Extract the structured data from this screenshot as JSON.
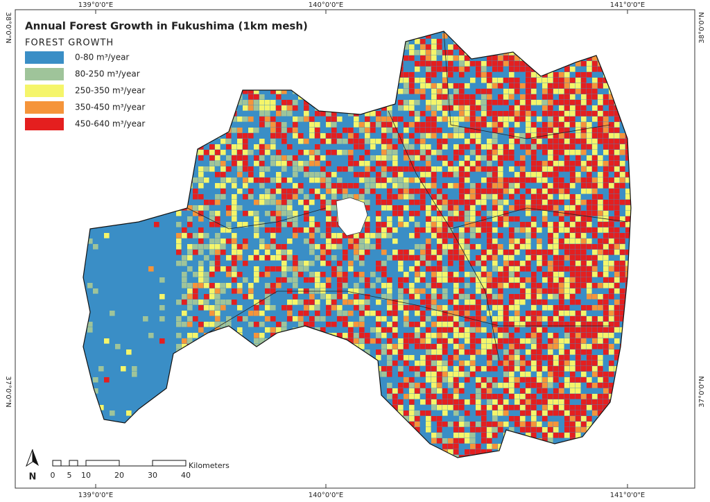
{
  "title": "Annual Forest Growth in Fukushima (1km mesh)",
  "legend": {
    "title": "FOREST GROWTH",
    "items": [
      {
        "label": "0-80 m³/year",
        "color": "#3a8ec6"
      },
      {
        "label": "80-250 m³/year",
        "color": "#9fc49a"
      },
      {
        "label": "250-350 m³/year",
        "color": "#f5f56a"
      },
      {
        "label": "350-450 m³/year",
        "color": "#f5943a"
      },
      {
        "label": "450-640 m³/year",
        "color": "#e41f1f"
      }
    ]
  },
  "graticule": {
    "top": [
      "139°0'0\"E",
      "140°0'0\"E",
      "141°0'0\"E"
    ],
    "bottom": [
      "139°0'0\"E",
      "140°0'0\"E",
      "141°0'0\"E"
    ],
    "left": [
      "38°0'0\"N",
      "37°0'0\"N"
    ],
    "right": [
      "38°0'0\"N",
      "37°0'0\"N"
    ]
  },
  "north_arrow": "N",
  "scale_bar": {
    "ticks": [
      0,
      5,
      10,
      20,
      30,
      40
    ],
    "unit": "Kilometers"
  }
}
